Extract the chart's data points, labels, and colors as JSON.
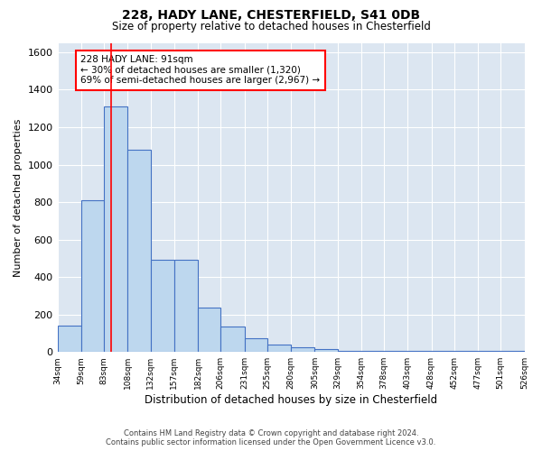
{
  "title1": "228, HADY LANE, CHESTERFIELD, S41 0DB",
  "title2": "Size of property relative to detached houses in Chesterfield",
  "xlabel": "Distribution of detached houses by size in Chesterfield",
  "ylabel": "Number of detached properties",
  "footnote1": "Contains HM Land Registry data © Crown copyright and database right 2024.",
  "footnote2": "Contains public sector information licensed under the Open Government Licence v3.0.",
  "annotation_title": "228 HADY LANE: 91sqm",
  "annotation_line1": "← 30% of detached houses are smaller (1,320)",
  "annotation_line2": "69% of semi-detached houses are larger (2,967) →",
  "bar_lefts": [
    34,
    59,
    83,
    108,
    132,
    157,
    182,
    206,
    231,
    255,
    280,
    305,
    329,
    354,
    378,
    403,
    428,
    452,
    477,
    501
  ],
  "bar_rights": [
    59,
    83,
    108,
    132,
    157,
    182,
    206,
    231,
    255,
    280,
    305,
    329,
    354,
    378,
    403,
    428,
    452,
    477,
    501,
    526
  ],
  "bar_heights": [
    140,
    810,
    1310,
    1080,
    490,
    490,
    235,
    135,
    75,
    40,
    25,
    15,
    5,
    5,
    5,
    5,
    5,
    5,
    5,
    5
  ],
  "tick_positions": [
    34,
    59,
    83,
    108,
    132,
    157,
    182,
    206,
    231,
    255,
    280,
    305,
    329,
    354,
    378,
    403,
    428,
    452,
    477,
    501,
    526
  ],
  "tick_labels": [
    "34sqm",
    "59sqm",
    "83sqm",
    "108sqm",
    "132sqm",
    "157sqm",
    "182sqm",
    "206sqm",
    "231sqm",
    "255sqm",
    "280sqm",
    "305sqm",
    "329sqm",
    "354sqm",
    "378sqm",
    "403sqm",
    "428sqm",
    "452sqm",
    "477sqm",
    "501sqm",
    "526sqm"
  ],
  "bar_color": "#bdd7ee",
  "bar_edge_color": "#4472c4",
  "redline_x": 91,
  "xlim": [
    34,
    526
  ],
  "ylim": [
    0,
    1650
  ],
  "plot_bg_color": "#dce6f1",
  "grid_color": "#ffffff",
  "yticks": [
    0,
    200,
    400,
    600,
    800,
    1000,
    1200,
    1400,
    1600
  ]
}
